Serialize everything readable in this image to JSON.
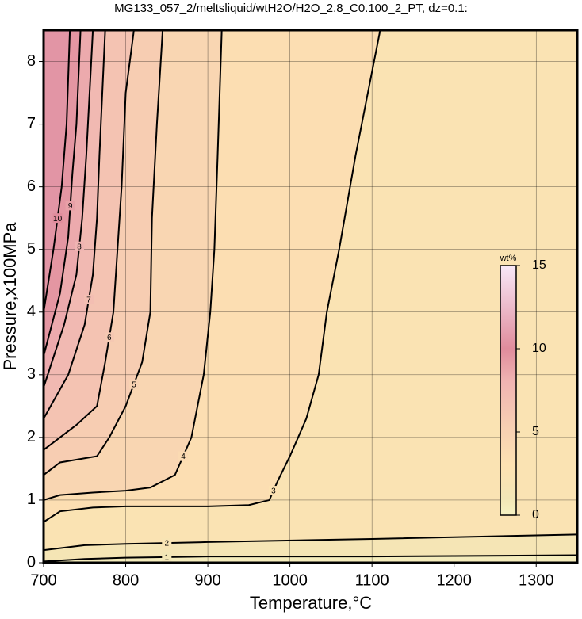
{
  "chart_data": {
    "type": "contour",
    "title": "MG133_057_2/meltsliquid/wtH2O/H2O_2.8_C0.100_2_PT, dz=0.1:",
    "x_label": "Temperature,°C",
    "y_label": "Pressure,x100MPa",
    "xlim": [
      700,
      1350
    ],
    "ylim": [
      0,
      8.5
    ],
    "xticks": [
      700,
      800,
      900,
      1000,
      1100,
      1200,
      1300
    ],
    "yticks": [
      0,
      1,
      2,
      3,
      4,
      5,
      6,
      7,
      8
    ],
    "grid": true,
    "colormap": [
      {
        "value": 0,
        "color": "#f6f2c2"
      },
      {
        "value": 1,
        "color": "#f2e6b6"
      },
      {
        "value": 3,
        "color": "#fde2b2"
      },
      {
        "value": 5,
        "color": "#f8d2b2"
      },
      {
        "value": 8,
        "color": "#f0b4b2"
      },
      {
        "value": 10,
        "color": "#e08c9c"
      },
      {
        "value": 15,
        "color": "#f8e8f8"
      }
    ],
    "colorbar": {
      "label": "wt%",
      "lim": [
        0,
        15
      ],
      "ticks": [
        0,
        5,
        10,
        15
      ]
    },
    "contours": [
      {
        "level": 1,
        "x": [
          700,
          750,
          800,
          900,
          1100,
          1350
        ],
        "y": [
          0.02,
          0.06,
          0.08,
          0.1,
          0.1,
          0.12
        ]
      },
      {
        "level": 2,
        "x": [
          700,
          750,
          800,
          900,
          1100,
          1350
        ],
        "y": [
          0.2,
          0.28,
          0.3,
          0.33,
          0.38,
          0.45
        ]
      },
      {
        "level": 3,
        "x": [
          700,
          720,
          760,
          800,
          900,
          950,
          975,
          985,
          1000,
          1020,
          1035,
          1045,
          1060,
          1080,
          1110
        ],
        "y": [
          0.65,
          0.82,
          0.88,
          0.9,
          0.9,
          0.92,
          1.0,
          1.3,
          1.7,
          2.3,
          3.0,
          4.0,
          5.0,
          6.5,
          8.5
        ]
      },
      {
        "level": 4,
        "x": [
          700,
          720,
          760,
          800,
          830,
          860,
          880,
          895,
          903,
          908,
          912,
          917
        ],
        "y": [
          1.0,
          1.08,
          1.12,
          1.15,
          1.2,
          1.4,
          2.0,
          3.0,
          4.0,
          5.0,
          6.5,
          8.5
        ]
      },
      {
        "level": 5,
        "x": [
          700,
          720,
          765,
          780,
          800,
          820,
          830,
          832,
          838,
          845
        ],
        "y": [
          1.4,
          1.6,
          1.7,
          2.0,
          2.5,
          3.2,
          4.0,
          5.5,
          7.0,
          8.5
        ]
      },
      {
        "level": 6,
        "x": [
          700,
          740,
          765,
          775,
          785,
          790,
          795,
          800,
          810
        ],
        "y": [
          1.8,
          2.2,
          2.5,
          3.2,
          4.0,
          5.0,
          6.0,
          7.5,
          8.5
        ]
      },
      {
        "level": 7,
        "x": [
          700,
          730,
          750,
          760,
          765,
          768,
          775
        ],
        "y": [
          2.3,
          3.0,
          3.8,
          4.6,
          5.5,
          6.5,
          8.5
        ]
      },
      {
        "level": 8,
        "x": [
          700,
          725,
          740,
          747,
          752,
          760
        ],
        "y": [
          2.8,
          3.8,
          4.6,
          5.5,
          6.5,
          8.5
        ]
      },
      {
        "level": 9,
        "x": [
          700,
          720,
          730,
          735,
          740,
          745
        ],
        "y": [
          3.3,
          4.3,
          5.2,
          6.2,
          7.0,
          8.5
        ]
      },
      {
        "level": 10,
        "x": [
          700,
          712,
          722,
          728,
          732
        ],
        "y": [
          4.0,
          5.0,
          6.0,
          7.0,
          8.5
        ]
      }
    ]
  }
}
